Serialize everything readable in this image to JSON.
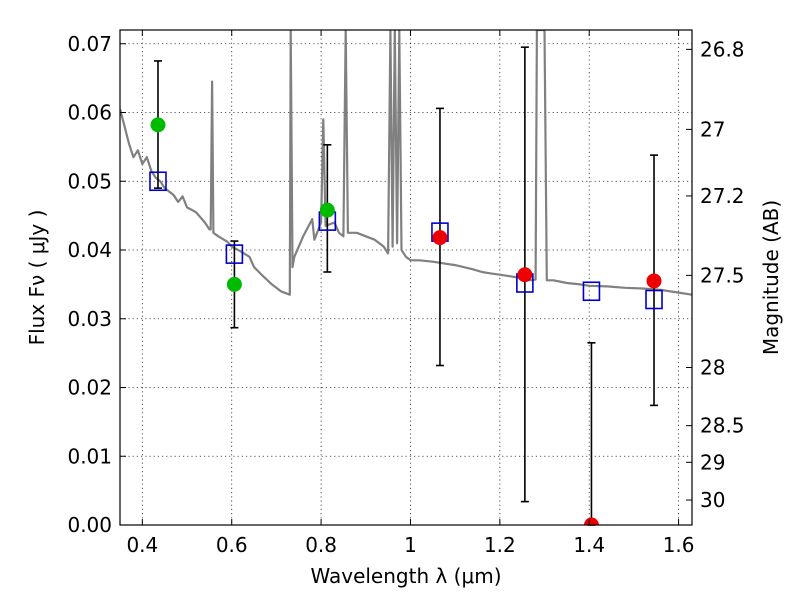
{
  "chart_data": {
    "type": "scatter",
    "xlabel": "Wavelength  λ (μm)",
    "ylabel": "Flux  Fν  ( μJy )",
    "ylabel_right": "Magnitude (AB)",
    "xlim": [
      0.35,
      1.63
    ],
    "ylim": [
      0.0,
      0.072
    ],
    "grid": true,
    "x_ticks": [
      0.4,
      0.6,
      0.8,
      1.0,
      1.2,
      1.4,
      1.6
    ],
    "x_tick_labels": [
      "0.4",
      "0.6",
      "0.8",
      "1",
      "1.2",
      "1.4",
      "1.6"
    ],
    "y_ticks": [
      0.0,
      0.01,
      0.02,
      0.03,
      0.04,
      0.05,
      0.06,
      0.07
    ],
    "y_tick_labels": [
      "0.00",
      "0.01",
      "0.02",
      "0.03",
      "0.04",
      "0.05",
      "0.06",
      "0.07"
    ],
    "mag_ticks": [
      26.8,
      27.0,
      27.2,
      27.5,
      28.0,
      28.5,
      29.0,
      30.0
    ],
    "mag_tick_labels": [
      "26.8",
      "27",
      "27.2",
      "27.5",
      "28",
      "28.5",
      "29",
      "30"
    ],
    "series": [
      {
        "color": "#00bb00",
        "marker": "circle",
        "points": [
          {
            "x": 0.435,
            "y": 0.0582,
            "ylo": 0.049,
            "yhi": 0.0675
          },
          {
            "x": 0.606,
            "y": 0.035,
            "ylo": 0.0287,
            "yhi": 0.0413
          },
          {
            "x": 0.814,
            "y": 0.0458,
            "ylo": 0.0368,
            "yhi": 0.0553
          }
        ]
      },
      {
        "color": "#ee0000",
        "marker": "circle",
        "points": [
          {
            "x": 1.066,
            "y": 0.0418,
            "ylo": 0.0232,
            "yhi": 0.0606
          },
          {
            "x": 1.256,
            "y": 0.0364,
            "ylo": 0.0034,
            "yhi": 0.0695
          },
          {
            "x": 1.405,
            "y": 0.0,
            "ylo": 0.0,
            "yhi": 0.0265
          },
          {
            "x": 1.545,
            "y": 0.0355,
            "ylo": 0.0174,
            "yhi": 0.0538
          }
        ]
      },
      {
        "color": "#0000cc",
        "marker": "square",
        "points": [
          {
            "x": 0.435,
            "y": 0.05
          },
          {
            "x": 0.606,
            "y": 0.0394
          },
          {
            "x": 0.814,
            "y": 0.0442
          },
          {
            "x": 1.066,
            "y": 0.0426
          },
          {
            "x": 1.256,
            "y": 0.0352
          },
          {
            "x": 1.405,
            "y": 0.034
          },
          {
            "x": 1.545,
            "y": 0.0328
          }
        ]
      },
      {
        "color": "#808080",
        "marker": "line",
        "points": [
          [
            0.35,
            0.0605
          ],
          [
            0.36,
            0.058
          ],
          [
            0.37,
            0.0555
          ],
          [
            0.38,
            0.0535
          ],
          [
            0.39,
            0.0545
          ],
          [
            0.4,
            0.0525
          ],
          [
            0.41,
            0.0535
          ],
          [
            0.42,
            0.0515
          ],
          [
            0.43,
            0.0505
          ],
          [
            0.44,
            0.05
          ],
          [
            0.45,
            0.049
          ],
          [
            0.46,
            0.0485
          ],
          [
            0.47,
            0.048
          ],
          [
            0.48,
            0.047
          ],
          [
            0.49,
            0.0478
          ],
          [
            0.5,
            0.0462
          ],
          [
            0.52,
            0.0455
          ],
          [
            0.54,
            0.044
          ],
          [
            0.55,
            0.043
          ],
          [
            0.553,
            0.043
          ],
          [
            0.556,
            0.0645
          ],
          [
            0.559,
            0.0425
          ],
          [
            0.57,
            0.042
          ],
          [
            0.59,
            0.0412
          ],
          [
            0.6,
            0.0405
          ],
          [
            0.62,
            0.0398
          ],
          [
            0.64,
            0.039
          ],
          [
            0.65,
            0.0375
          ],
          [
            0.67,
            0.0362
          ],
          [
            0.69,
            0.035
          ],
          [
            0.71,
            0.034
          ],
          [
            0.73,
            0.0335
          ],
          [
            0.732,
            0.072
          ],
          [
            0.736,
            0.0375
          ],
          [
            0.74,
            0.039
          ],
          [
            0.76,
            0.042
          ],
          [
            0.78,
            0.0445
          ],
          [
            0.785,
            0.0415
          ],
          [
            0.8,
            0.044
          ],
          [
            0.805,
            0.059
          ],
          [
            0.81,
            0.0435
          ],
          [
            0.83,
            0.044
          ],
          [
            0.84,
            0.0425
          ],
          [
            0.85,
            0.042
          ],
          [
            0.855,
            0.072
          ],
          [
            0.86,
            0.0425
          ],
          [
            0.88,
            0.0425
          ],
          [
            0.9,
            0.042
          ],
          [
            0.92,
            0.0415
          ],
          [
            0.94,
            0.0405
          ],
          [
            0.95,
            0.0395
          ],
          [
            0.955,
            0.072
          ],
          [
            0.96,
            0.0405
          ],
          [
            0.965,
            0.072
          ],
          [
            0.97,
            0.041
          ],
          [
            0.975,
            0.072
          ],
          [
            0.98,
            0.04
          ],
          [
            0.99,
            0.039
          ],
          [
            1.0,
            0.0385
          ],
          [
            1.02,
            0.0385
          ],
          [
            1.05,
            0.0383
          ],
          [
            1.08,
            0.038
          ],
          [
            1.1,
            0.0378
          ],
          [
            1.12,
            0.0375
          ],
          [
            1.14,
            0.0372
          ],
          [
            1.16,
            0.0368
          ],
          [
            1.18,
            0.0366
          ],
          [
            1.2,
            0.0364
          ],
          [
            1.22,
            0.0362
          ],
          [
            1.24,
            0.036
          ],
          [
            1.26,
            0.0358
          ],
          [
            1.27,
            0.0356
          ],
          [
            1.28,
            0.0357
          ],
          [
            1.283,
            0.072
          ],
          [
            1.3,
            0.072
          ],
          [
            1.305,
            0.0356
          ],
          [
            1.32,
            0.0356
          ],
          [
            1.35,
            0.0352
          ],
          [
            1.38,
            0.035
          ],
          [
            1.4,
            0.0348
          ],
          [
            1.44,
            0.0347
          ],
          [
            1.48,
            0.0345
          ],
          [
            1.52,
            0.0344
          ],
          [
            1.56,
            0.0342
          ],
          [
            1.6,
            0.0338
          ],
          [
            1.63,
            0.0335
          ]
        ]
      }
    ]
  }
}
